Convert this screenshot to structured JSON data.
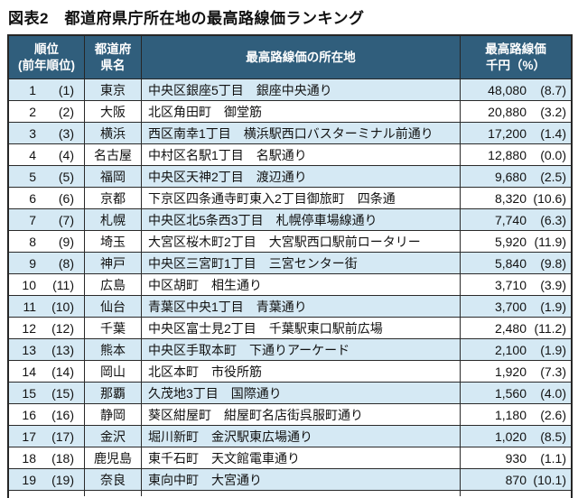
{
  "title": "図表2　都道府県庁所在地の最高路線価ランキング",
  "table": {
    "headers": {
      "rank_line1": "順位",
      "rank_line2": "(前年順位)",
      "pref_line1": "都道府",
      "pref_line2": "県名",
      "location": "最高路線価の所在地",
      "price_line1": "最高路線価",
      "price_line2": "千円（%）"
    },
    "rows": [
      {
        "rank": "1",
        "prev": "(1)",
        "pref": "東京",
        "location": "中央区銀座5丁目　銀座中央通り",
        "value": "48,080",
        "pct": "(8.7)"
      },
      {
        "rank": "2",
        "prev": "(2)",
        "pref": "大阪",
        "location": "北区角田町　御堂筋",
        "value": "20,880",
        "pct": "(3.2)"
      },
      {
        "rank": "3",
        "prev": "(3)",
        "pref": "横浜",
        "location": "西区南幸1丁目　横浜駅西口バスターミナル前通り",
        "value": "17,200",
        "pct": "(1.4)"
      },
      {
        "rank": "4",
        "prev": "(4)",
        "pref": "名古屋",
        "location": "中村区名駅1丁目　名駅通り",
        "value": "12,880",
        "pct": "(0.0)"
      },
      {
        "rank": "5",
        "prev": "(5)",
        "pref": "福岡",
        "location": "中央区天神2丁目　渡辺通り",
        "value": "9,680",
        "pct": "(2.5)"
      },
      {
        "rank": "6",
        "prev": "(6)",
        "pref": "京都",
        "location": "下京区四条通寺町東入2丁目御旅町　四条通",
        "value": "8,320",
        "pct": "(10.6)"
      },
      {
        "rank": "7",
        "prev": "(7)",
        "pref": "札幌",
        "location": "中央区北5条西3丁目　札幌停車場線通り",
        "value": "7,740",
        "pct": "(6.3)"
      },
      {
        "rank": "8",
        "prev": "(9)",
        "pref": "埼玉",
        "location": "大宮区桜木町2丁目　大宮駅西口駅前ロータリー",
        "value": "5,920",
        "pct": "(11.9)"
      },
      {
        "rank": "9",
        "prev": "(8)",
        "pref": "神戸",
        "location": "中央区三宮町1丁目　三宮センター街",
        "value": "5,840",
        "pct": "(9.8)"
      },
      {
        "rank": "10",
        "prev": "(11)",
        "pref": "広島",
        "location": "中区胡町　相生通り",
        "value": "3,710",
        "pct": "(3.9)"
      },
      {
        "rank": "11",
        "prev": "(10)",
        "pref": "仙台",
        "location": "青葉区中央1丁目　青葉通り",
        "value": "3,700",
        "pct": "(1.9)"
      },
      {
        "rank": "12",
        "prev": "(12)",
        "pref": "千葉",
        "location": "中央区富士見2丁目　千葉駅東口駅前広場",
        "value": "2,480",
        "pct": "(11.2)"
      },
      {
        "rank": "13",
        "prev": "(13)",
        "pref": "熊本",
        "location": "中央区手取本町　下通りアーケード",
        "value": "2,100",
        "pct": "(1.9)"
      },
      {
        "rank": "14",
        "prev": "(14)",
        "pref": "岡山",
        "location": "北区本町　市役所筋",
        "value": "1,920",
        "pct": "(7.3)"
      },
      {
        "rank": "15",
        "prev": "(15)",
        "pref": "那覇",
        "location": "久茂地3丁目　国際通り",
        "value": "1,560",
        "pct": "(4.0)"
      },
      {
        "rank": "16",
        "prev": "(16)",
        "pref": "静岡",
        "location": "葵区紺屋町　紺屋町名店街呉服町通り",
        "value": "1,180",
        "pct": "(2.6)"
      },
      {
        "rank": "17",
        "prev": "(17)",
        "pref": "金沢",
        "location": "堀川新町　金沢駅東広場通り",
        "value": "1,020",
        "pct": "(8.5)"
      },
      {
        "rank": "18",
        "prev": "(18)",
        "pref": "鹿児島",
        "location": "東千石町　天文館電車通り",
        "value": "930",
        "pct": "(1.1)"
      },
      {
        "rank": "19",
        "prev": "(19)",
        "pref": "奈良",
        "location": "東向中町　大宮通り",
        "value": "870",
        "pct": "(10.1)"
      }
    ]
  },
  "colors": {
    "header_bg": "#305e7c",
    "header_text": "#ffffff",
    "odd_row_bg": "#d5e9f4",
    "even_row_bg": "#ffffff",
    "border": "#2a2a2a",
    "text": "#111111"
  }
}
